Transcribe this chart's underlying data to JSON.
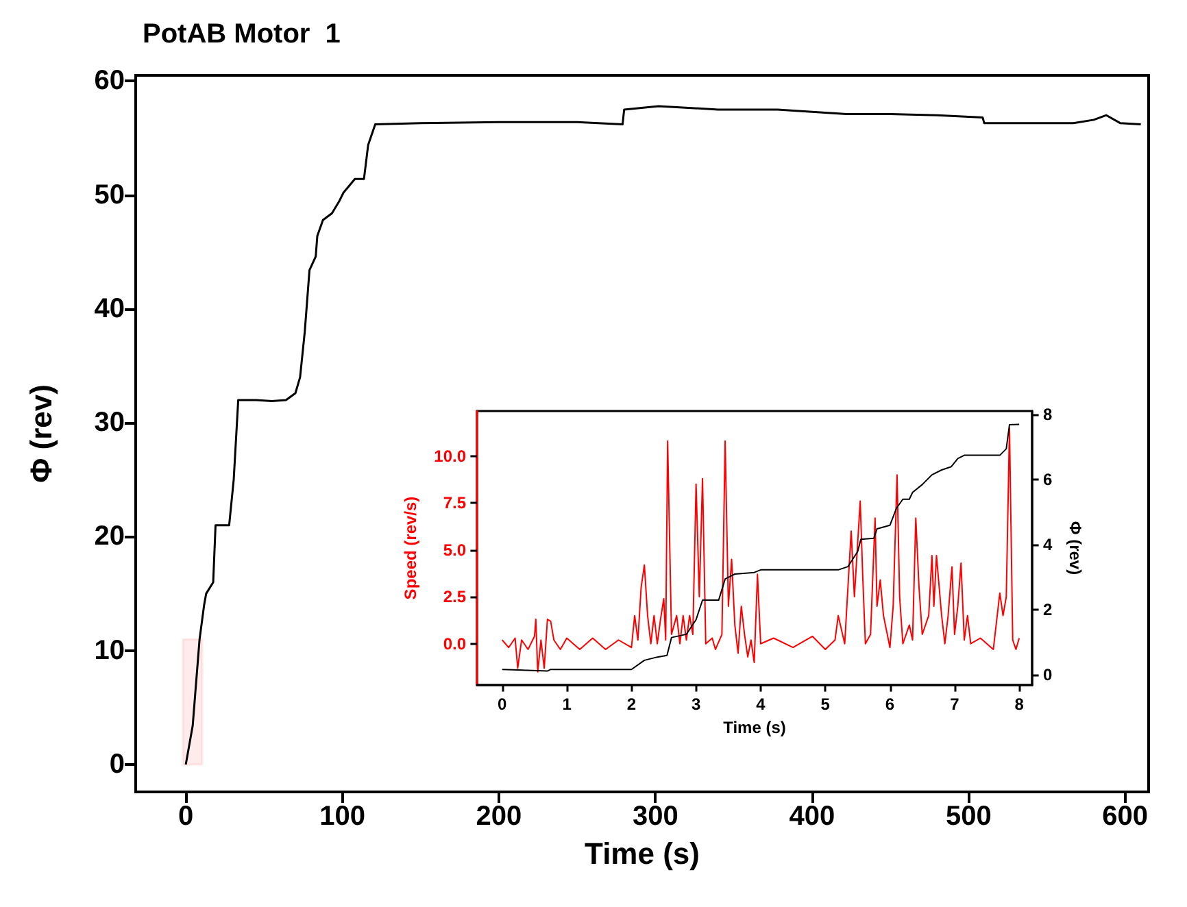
{
  "chart_data": [
    {
      "type": "line",
      "title": "PotAB Motor  1",
      "xlabel": "Time (s)",
      "ylabel": "Φ (rev)",
      "bands": [
        {
          "axis": "x",
          "from": -1.8,
          "to": 10.5,
          "color": "#ff0000"
        }
      ],
      "xlim": [
        -32,
        615
      ],
      "ylim": [
        -2.4,
        60.5
      ],
      "xticks": [
        0,
        100,
        200,
        300,
        400,
        500,
        600
      ],
      "yticks": [
        0,
        10,
        20,
        30,
        40,
        50,
        60
      ],
      "series": [
        {
          "color": "#000000",
          "x": [
            0,
            4.4,
            8.8,
            11.7,
            13,
            17.5,
            19,
            27.7,
            30.6,
            33.5,
            45,
            55,
            64,
            70,
            73,
            76,
            79,
            83,
            84,
            87.6,
            93.4,
            97.8,
            100.7,
            108,
            113.8,
            116.5,
            121,
            150,
            200,
            250,
            279,
            280,
            302,
            340,
            378,
            400,
            422,
            450,
            480,
            509,
            510,
            540,
            567,
            580,
            588,
            597,
            610
          ],
          "values": [
            0,
            3.4,
            11,
            14,
            15,
            16,
            21,
            21,
            25,
            32,
            32,
            31.9,
            32,
            32.6,
            34,
            38,
            43.4,
            44.6,
            46.4,
            47.8,
            48.4,
            49.4,
            50.2,
            51.4,
            51.4,
            54.4,
            56.2,
            56.3,
            56.4,
            56.4,
            56.2,
            57.5,
            57.8,
            57.5,
            57.5,
            57.3,
            57.1,
            57.1,
            57,
            56.8,
            56.3,
            56.3,
            56.3,
            56.6,
            57,
            56.3,
            56.2
          ]
        }
      ]
    },
    {
      "type": "line",
      "xlabel": "Time (s)",
      "ylabel": "Speed (rev/s)",
      "y2label": "Φ (rev)",
      "xlim": [
        -0.39,
        8.2
      ],
      "ylim": [
        -2.2,
        12.4
      ],
      "y2lim": [
        -0.31,
        8.11
      ],
      "xticks": [
        0,
        1,
        2,
        3,
        4,
        5,
        6,
        7,
        8
      ],
      "yticks": [
        {
          "value": 0,
          "label": "0.0"
        },
        {
          "value": 2.5,
          "label": "2.5"
        },
        {
          "value": 5,
          "label": "5.0"
        },
        {
          "value": 7.5,
          "label": "7.5"
        },
        {
          "value": 10,
          "label": "10.0"
        }
      ],
      "y2ticks": [
        0,
        2,
        4,
        6,
        8
      ],
      "series": [
        {
          "color": "#ff0000",
          "x": [
            0,
            0.1,
            0.2,
            0.24,
            0.3,
            0.4,
            0.5,
            0.52,
            0.55,
            0.6,
            0.65,
            0.7,
            0.75,
            0.8,
            0.9,
            1.0,
            1.2,
            1.4,
            1.6,
            1.8,
            2.0,
            2.05,
            2.1,
            2.15,
            2.2,
            2.25,
            2.3,
            2.35,
            2.4,
            2.45,
            2.5,
            2.53,
            2.56,
            2.62,
            2.7,
            2.75,
            2.8,
            2.85,
            2.9,
            2.95,
            3.0,
            3.05,
            3.1,
            3.15,
            3.25,
            3.3,
            3.4,
            3.45,
            3.5,
            3.55,
            3.6,
            3.65,
            3.7,
            3.75,
            3.8,
            3.85,
            3.9,
            3.95,
            4.0,
            4.2,
            4.5,
            4.8,
            5.0,
            5.15,
            5.2,
            5.3,
            5.35,
            5.4,
            5.45,
            5.54,
            5.58,
            5.62,
            5.7,
            5.77,
            5.8,
            5.85,
            5.9,
            6.0,
            6.05,
            6.11,
            6.15,
            6.2,
            6.3,
            6.35,
            6.4,
            6.45,
            6.5,
            6.6,
            6.65,
            6.68,
            6.72,
            6.8,
            6.85,
            6.9,
            6.96,
            7.0,
            7.05,
            7.1,
            7.15,
            7.2,
            7.25,
            7.4,
            7.6,
            7.7,
            7.75,
            7.8,
            7.85,
            7.9,
            7.95,
            8.0
          ],
          "values": [
            0.2,
            -0.2,
            0.3,
            -1.3,
            0.2,
            -0.3,
            0.4,
            1.3,
            -1.5,
            0.2,
            -1.3,
            1.3,
            1.2,
            0.2,
            -0.3,
            0.3,
            -0.3,
            0.3,
            -0.3,
            0.2,
            -0.2,
            1.5,
            0.2,
            3.0,
            4.2,
            1.5,
            0.0,
            1.5,
            0.0,
            1.3,
            2.4,
            0.2,
            10.8,
            0.5,
            1.5,
            0.0,
            1.5,
            0.2,
            1.5,
            0.5,
            8.5,
            2.5,
            8.8,
            0.0,
            0.3,
            -0.3,
            0.5,
            10.8,
            2.0,
            4.5,
            1.0,
            -0.5,
            2.0,
            0.5,
            -0.7,
            0.2,
            -1.0,
            3.7,
            0.0,
            0.3,
            -0.2,
            0.4,
            -0.3,
            0.2,
            1.5,
            0.0,
            3.0,
            6.0,
            2.5,
            7.6,
            3.5,
            0.0,
            0.5,
            6.7,
            2.0,
            3.4,
            1.5,
            -0.2,
            2.0,
            9.0,
            2.5,
            0.0,
            1.0,
            0.2,
            6.7,
            3.0,
            0.5,
            1.5,
            4.7,
            2.0,
            4.7,
            1.5,
            0.0,
            1.5,
            4.1,
            0.5,
            2.0,
            4.3,
            0.2,
            1.5,
            0.0,
            0.3,
            -0.3,
            2.7,
            1.5,
            2.5,
            11.5,
            0.2,
            -0.3,
            0.3
          ]
        },
        {
          "color": "#000000",
          "axis": "y2",
          "x": [
            0,
            0.7,
            0.75,
            2.0,
            2.2,
            2.4,
            2.55,
            2.62,
            2.85,
            3.0,
            3.1,
            3.35,
            3.45,
            3.55,
            3.6,
            3.9,
            4.0,
            5.2,
            5.35,
            5.5,
            5.55,
            5.75,
            5.8,
            6.0,
            6.1,
            6.2,
            6.3,
            6.35,
            6.5,
            6.65,
            6.8,
            6.95,
            7.05,
            7.15,
            7.7,
            7.8,
            7.85,
            8.0
          ],
          "values": [
            0.17,
            0.12,
            0.17,
            0.17,
            0.45,
            0.55,
            0.6,
            1.15,
            1.25,
            1.7,
            2.3,
            2.3,
            2.95,
            3.05,
            3.1,
            3.15,
            3.23,
            3.23,
            3.33,
            3.79,
            4.17,
            4.2,
            4.49,
            4.6,
            5.12,
            5.4,
            5.4,
            5.61,
            5.85,
            6.15,
            6.3,
            6.4,
            6.65,
            6.75,
            6.75,
            6.95,
            7.69,
            7.7
          ]
        }
      ]
    }
  ]
}
